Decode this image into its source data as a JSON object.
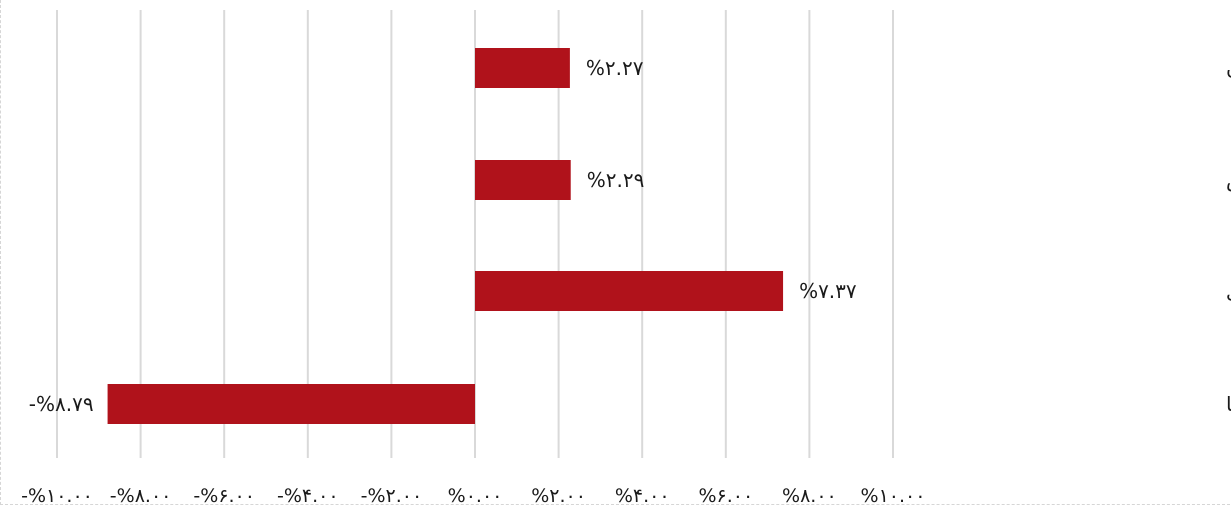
{
  "chart_data": {
    "type": "bar",
    "orientation": "horizontal",
    "categories": [
      "شاخص بورس اوراق بهادار تهران",
      "شاخص فرابورس",
      "قیمت سکه بهار آزادی",
      "قیمت دلار آمریکا"
    ],
    "values": [
      2.27,
      2.29,
      7.37,
      -8.79
    ],
    "data_labels": [
      "%۲.۲۷",
      "%۲.۲۹",
      "%۷.۳۷",
      "-%۸.۷۹"
    ],
    "xlim": [
      -10,
      10
    ],
    "x_ticks": [
      -10,
      -8,
      -6,
      -4,
      -2,
      0,
      2,
      4,
      6,
      8,
      10
    ],
    "x_tick_labels": [
      "-%۱۰.۰۰",
      "-%۸.۰۰",
      "-%۶.۰۰",
      "-%۴.۰۰",
      "-%۲.۰۰",
      "%۰.۰۰",
      "%۲.۰۰",
      "%۴.۰۰",
      "%۶.۰۰",
      "%۸.۰۰",
      "%۱۰.۰۰"
    ],
    "title": "",
    "xlabel": "",
    "ylabel": "",
    "grid": "vertical",
    "bar_color": "#b0121b",
    "gridline_color": "#d9d9d9"
  }
}
